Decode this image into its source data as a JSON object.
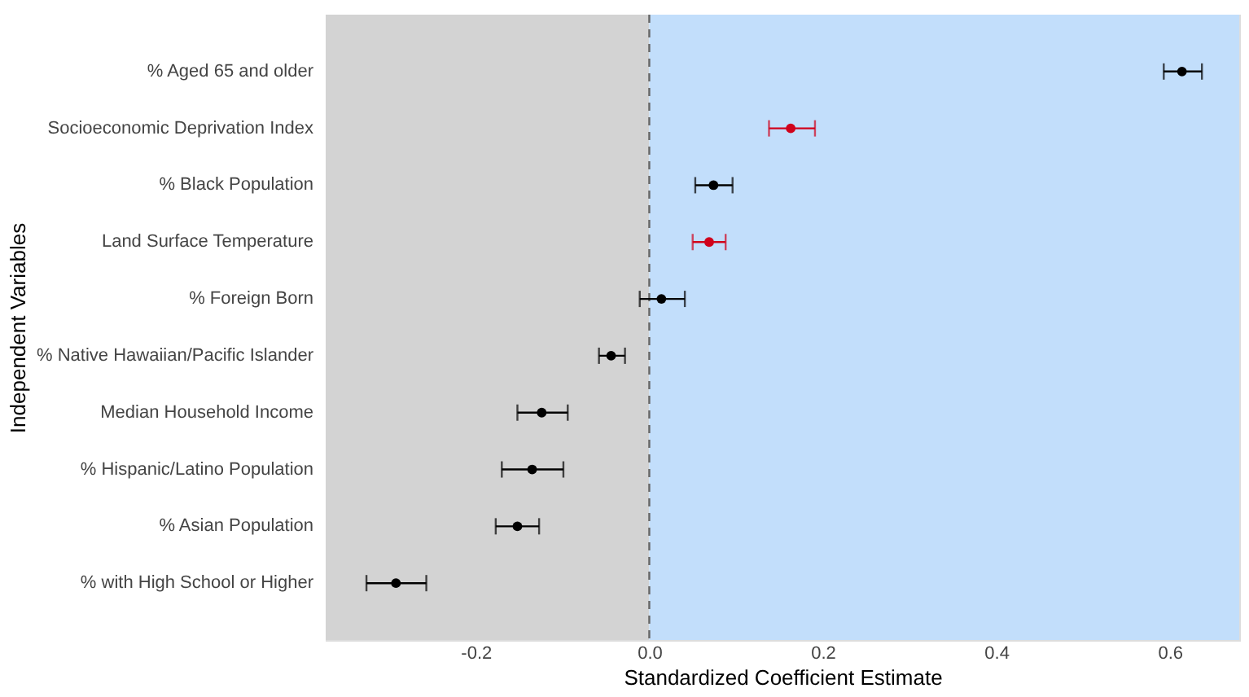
{
  "chart_data": {
    "type": "scatter",
    "orientation": "horizontal",
    "xlabel": "Standardized Coefficient Estimate",
    "ylabel": "Independent Variables",
    "categories": [
      "% Aged 65 and older",
      "Socioeconomic Deprivation Index",
      "% Black Population",
      "Land Surface Temperature",
      "% Foreign Born",
      "% Native Hawaiian/Pacific Islander",
      "Median Household Income",
      "% Hispanic/Latino Population",
      "% Asian Population",
      "% with High School or Higher"
    ],
    "values": [
      0.614,
      0.163,
      0.074,
      0.069,
      0.014,
      -0.044,
      -0.124,
      -0.135,
      -0.152,
      -0.292
    ],
    "errors": [
      [
        0.593,
        0.637
      ],
      [
        0.138,
        0.191
      ],
      [
        0.053,
        0.096
      ],
      [
        0.05,
        0.088
      ],
      [
        -0.011,
        0.041
      ],
      [
        -0.058,
        -0.028
      ],
      [
        -0.152,
        -0.094
      ],
      [
        -0.17,
        -0.099
      ],
      [
        -0.177,
        -0.127
      ],
      [
        -0.326,
        -0.257
      ]
    ],
    "colors": [
      "#000000",
      "#d0021b",
      "#000000",
      "#d0021b",
      "#000000",
      "#000000",
      "#000000",
      "#000000",
      "#000000",
      "#000000"
    ],
    "xlim": [
      -0.373,
      0.68
    ],
    "xticks": [
      {
        "value": -0.2,
        "label": "-0.2"
      },
      {
        "value": 0,
        "label": "0.0"
      },
      {
        "value": 0.2,
        "label": "0.2"
      },
      {
        "value": 0.4,
        "label": "0.4"
      },
      {
        "value": 0.6,
        "label": "0.6"
      }
    ],
    "bands": [
      {
        "axis": "x",
        "from": -0.373,
        "to": 0,
        "color": "#d3d3d3"
      },
      {
        "axis": "x",
        "from": 0,
        "to": 0.68,
        "color": "#c2defb"
      }
    ],
    "ref_lines": [
      {
        "axis": "x",
        "value": 0,
        "color": "#666666",
        "line_style": "dashed"
      }
    ],
    "marker": "circle",
    "grid": false
  }
}
